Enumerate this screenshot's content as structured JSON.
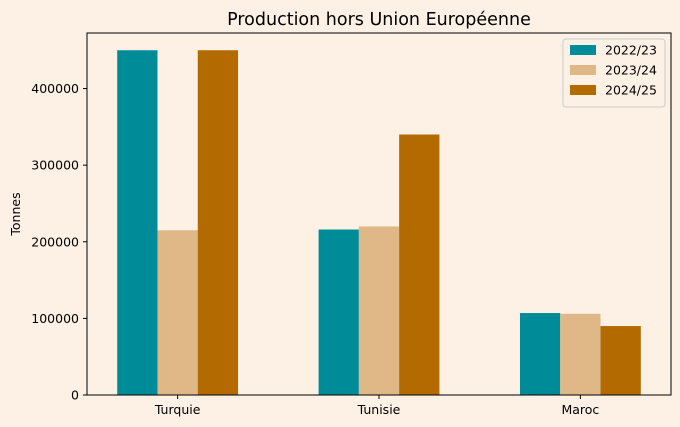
{
  "chart_data": {
    "type": "bar",
    "title": "Production hors Union Européenne",
    "xlabel": "",
    "ylabel": "Tonnes",
    "categories": [
      "Turquie",
      "Tunisie",
      "Maroc"
    ],
    "series": [
      {
        "name": "2022/23",
        "color": "#008b99",
        "values": [
          450000,
          216000,
          107000
        ]
      },
      {
        "name": "2023/24",
        "color": "#e0b888",
        "values": [
          215000,
          220000,
          106000
        ]
      },
      {
        "name": "2024/25",
        "color": "#b36a00",
        "values": [
          450000,
          340000,
          90000
        ]
      }
    ],
    "ylim": [
      0,
      472500
    ],
    "yticks": [
      0,
      100000,
      200000,
      300000,
      400000
    ],
    "ytick_labels": [
      "0",
      "100000",
      "200000",
      "300000",
      "400000"
    ],
    "grid": false,
    "legend_position": "top-right"
  }
}
